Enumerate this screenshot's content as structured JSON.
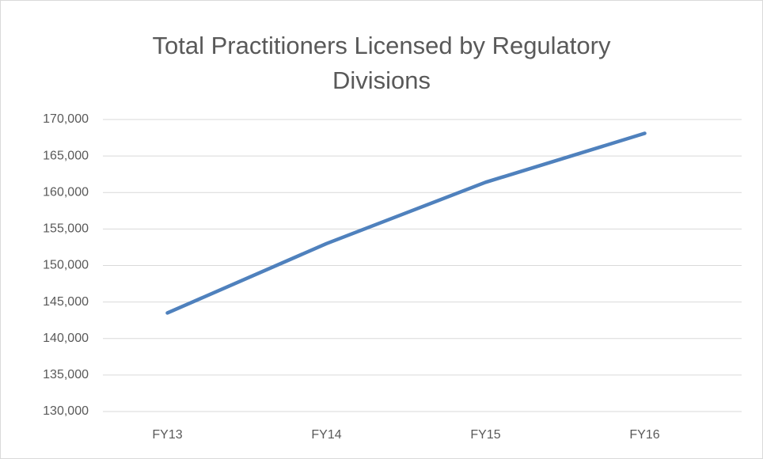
{
  "chart_data": {
    "type": "line",
    "title": "Total Practitioners Licensed by Regulatory Divisions",
    "categories": [
      "FY13",
      "FY14",
      "FY15",
      "FY16"
    ],
    "series": [
      {
        "name": "Total Practitioners",
        "color": "#4f81bd",
        "values": [
          143500,
          153000,
          161400,
          168100
        ]
      }
    ],
    "ylim": [
      130000,
      170000
    ],
    "yticks": [
      {
        "value": 130000,
        "label": "130,000"
      },
      {
        "value": 135000,
        "label": "135,000"
      },
      {
        "value": 140000,
        "label": "140,000"
      },
      {
        "value": 145000,
        "label": "145,000"
      },
      {
        "value": 150000,
        "label": "150,000"
      },
      {
        "value": 155000,
        "label": "155,000"
      },
      {
        "value": 160000,
        "label": "160,000"
      },
      {
        "value": 165000,
        "label": "165,000"
      },
      {
        "value": 170000,
        "label": "170,000"
      }
    ],
    "grid": true
  }
}
